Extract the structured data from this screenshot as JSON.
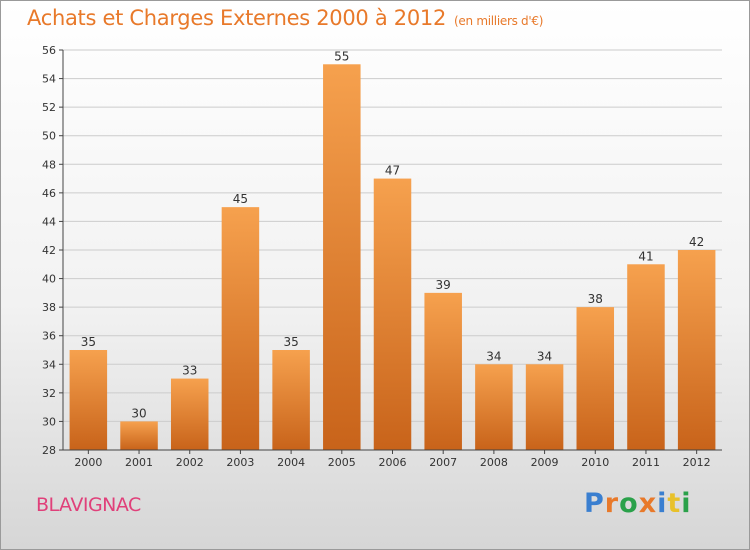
{
  "header": {
    "title": "Achats et Charges Externes 2000 à 2012",
    "subtitle": "(en milliers d'€)"
  },
  "footer": {
    "town": "BLAVIGNAC",
    "brand_letters": [
      "P",
      "r",
      "o",
      "x",
      "i",
      "t",
      "i"
    ],
    "brand_colors": [
      "#3a7fd0",
      "#e8792a",
      "#2aa14a",
      "#e8792a",
      "#3a7fd0",
      "#e8c12a",
      "#2aa14a"
    ]
  },
  "colors": {
    "bar_light": "#f6a14e",
    "bar_dark": "#c8631a",
    "grid": "#cccccc",
    "axis": "#444444",
    "text": "#333333"
  },
  "chart_data": {
    "type": "bar",
    "title": "Achats et Charges Externes 2000 à 2012",
    "subtitle": "(en milliers d'€)",
    "categories": [
      "2000",
      "2001",
      "2002",
      "2003",
      "2004",
      "2005",
      "2006",
      "2007",
      "2008",
      "2009",
      "2010",
      "2011",
      "2012"
    ],
    "values": [
      35,
      30,
      33,
      45,
      35,
      55,
      47,
      39,
      34,
      34,
      38,
      41,
      42
    ],
    "ylim": [
      28,
      56
    ],
    "yticks": [
      28,
      30,
      32,
      34,
      36,
      38,
      40,
      42,
      44,
      46,
      48,
      50,
      52,
      54,
      56
    ],
    "grid": true,
    "xlabel": "",
    "ylabel": ""
  }
}
